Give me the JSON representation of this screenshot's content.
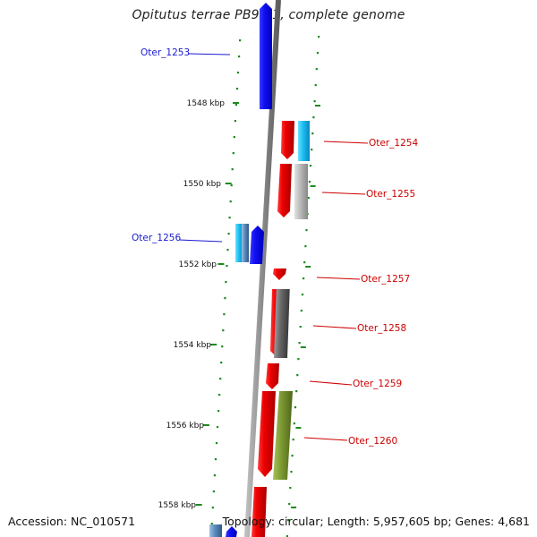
{
  "title": "Opitutus terrae PB90-1, complete genome",
  "footer": {
    "accession": "Accession: NC_010571",
    "topology": "Topology: circular; Length: 5,957,605 bp; Genes: 4,681"
  },
  "scale": {
    "unit": "kbp",
    "major_ticks": [
      {
        "label": "1548 kbp"
      },
      {
        "label": "1550 kbp"
      },
      {
        "label": "1552 kbp"
      },
      {
        "label": "1554 kbp"
      },
      {
        "label": "1556 kbp"
      },
      {
        "label": "1558 kbp"
      }
    ]
  },
  "gene_labels": [
    {
      "name": "Oter_1253",
      "strand": "minus"
    },
    {
      "name": "Oter_1254",
      "strand": "plus"
    },
    {
      "name": "Oter_1255",
      "strand": "plus"
    },
    {
      "name": "Oter_1256",
      "strand": "minus"
    },
    {
      "name": "Oter_1257",
      "strand": "plus"
    },
    {
      "name": "Oter_1258",
      "strand": "plus"
    },
    {
      "name": "Oter_1259",
      "strand": "plus"
    },
    {
      "name": "Oter_1260",
      "strand": "plus"
    }
  ],
  "colors": {
    "minus_strand": "#0a0af0",
    "plus_strand": "#e60000",
    "minus_label": "#1a1ad0",
    "plus_label": "#cc0000",
    "backbone": "#8a8a8a",
    "tick": "#1e8a1e",
    "cyan_feature": "#22c4f4",
    "gray_feature": "#b8b8b8",
    "dark_gray_feature": "#666666",
    "olive_feature": "#7d9a32"
  }
}
